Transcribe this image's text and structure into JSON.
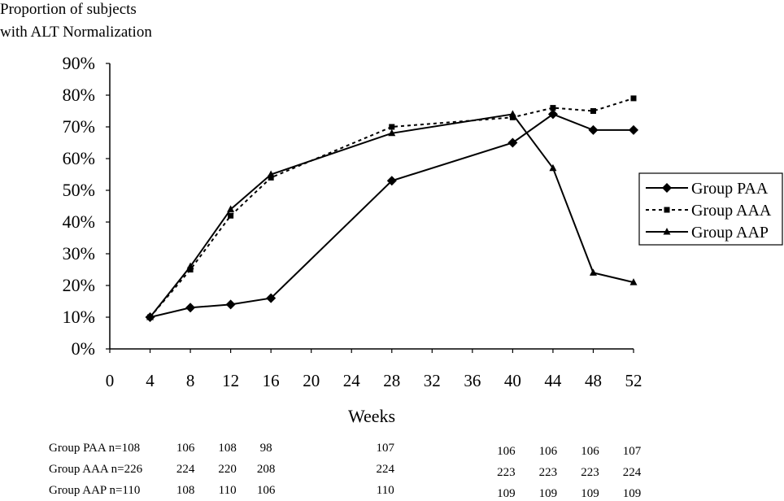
{
  "chart_data": {
    "type": "line",
    "ylabel_lines": [
      "Proportion of subjects",
      "with ALT Normalization"
    ],
    "xlabel": "Weeks",
    "x_ticks": [
      0,
      4,
      8,
      12,
      16,
      20,
      24,
      28,
      32,
      36,
      40,
      44,
      48,
      52
    ],
    "xlim": [
      0,
      52
    ],
    "y_ticks": [
      "0%",
      "10%",
      "20%",
      "30%",
      "40%",
      "50%",
      "60%",
      "70%",
      "80%",
      "90%"
    ],
    "ylim": [
      0,
      90
    ],
    "y_unit": "%",
    "grid": false,
    "legend_position": "right",
    "series": [
      {
        "name": "Group PAA",
        "marker": "diamond",
        "line_style": "solid",
        "color": "#000000",
        "x": [
          4,
          8,
          12,
          16,
          28,
          40,
          44,
          48,
          52
        ],
        "y": [
          10,
          13,
          14,
          16,
          53,
          65,
          74,
          69,
          69
        ]
      },
      {
        "name": "Group AAA",
        "marker": "square",
        "line_style": "dotted",
        "color": "#000000",
        "x": [
          4,
          8,
          12,
          16,
          28,
          40,
          44,
          48,
          52
        ],
        "y": [
          10,
          25,
          42,
          54,
          70,
          73,
          76,
          75,
          79
        ]
      },
      {
        "name": "Group AAP",
        "marker": "triangle",
        "line_style": "solid",
        "color": "#000000",
        "x": [
          4,
          8,
          12,
          16,
          28,
          40,
          44,
          48,
          52
        ],
        "y": [
          10,
          26,
          44,
          55,
          68,
          74,
          57,
          24,
          21
        ]
      }
    ],
    "n_table": [
      {
        "label": "Group PAA n=108",
        "weeks": [
          8,
          12,
          16,
          28,
          40,
          44,
          48,
          52
        ],
        "counts": [
          "106",
          "108",
          "98",
          "107",
          "106",
          "106",
          "106",
          "107"
        ]
      },
      {
        "label": "Group AAA n=226",
        "weeks": [
          8,
          12,
          16,
          28,
          40,
          44,
          48,
          52
        ],
        "counts": [
          "224",
          "220",
          "208",
          "224",
          "223",
          "223",
          "223",
          "224"
        ]
      },
      {
        "label": "Group AAP n=110",
        "weeks": [
          8,
          12,
          16,
          28,
          40,
          44,
          48,
          52
        ],
        "counts": [
          "108",
          "110",
          "106",
          "110",
          "109",
          "109",
          "109",
          "109"
        ]
      }
    ]
  }
}
